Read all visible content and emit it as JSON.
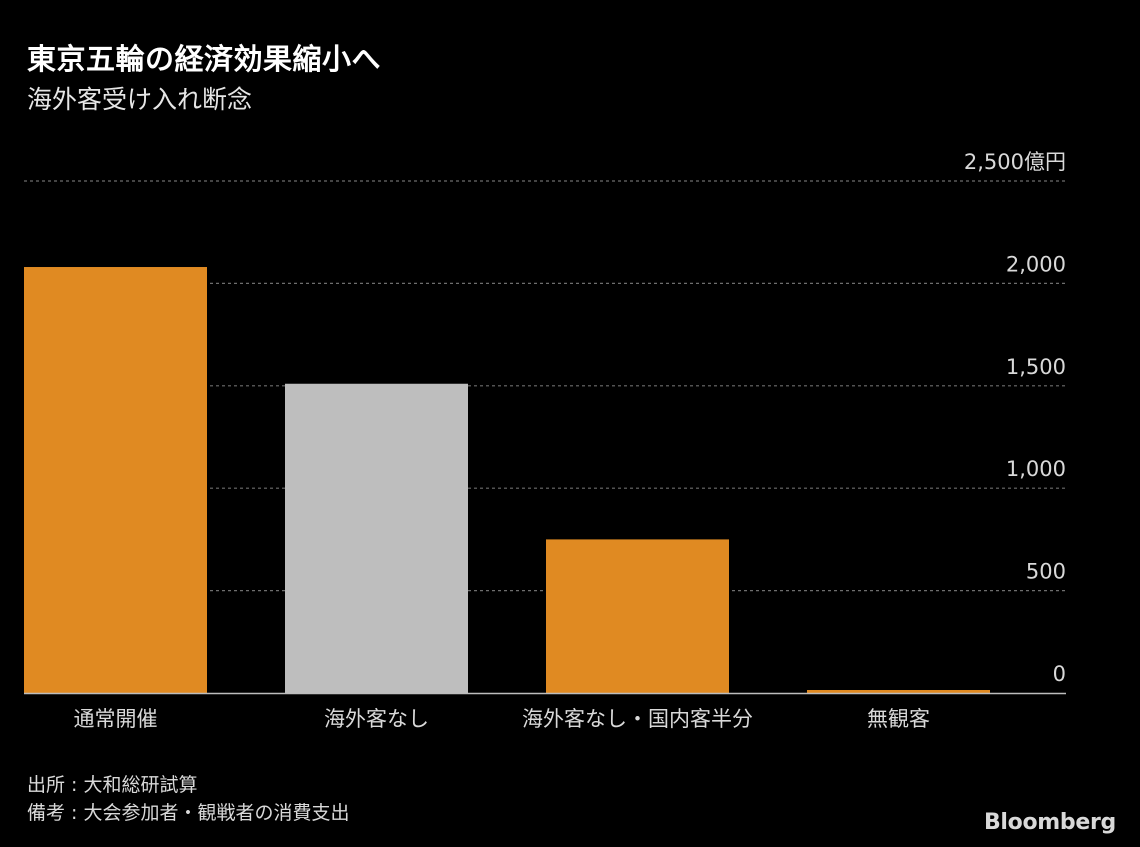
{
  "header": {
    "title": "東京五輪の経済効果縮小へ",
    "subtitle": "海外客受け入れ断念"
  },
  "chart_data": {
    "type": "bar",
    "categories": [
      "通常開催",
      "海外客なし",
      "海外客なし・国内客半分",
      "無観客"
    ],
    "values": [
      2080,
      1510,
      750,
      10
    ],
    "bar_colors": [
      "#e08a22",
      "#bebebe",
      "#e08a22",
      "#e08a22"
    ],
    "ylim": [
      0,
      2500
    ],
    "yticks": [
      0,
      500,
      1000,
      1500,
      2000,
      2500
    ],
    "ytick_labels": [
      "0",
      "500",
      "1,000",
      "1,500",
      "2,000",
      "2,500億円"
    ],
    "y_axis_position": "right",
    "grid": true,
    "title": "東京五輪の経済効果縮小へ",
    "subtitle": "海外客受け入れ断念"
  },
  "footer": {
    "source": "出所 : 大和総研試算",
    "note": "備考 : 大会参加者・観戦者の消費支出",
    "brand": "Bloomberg"
  },
  "colors": {
    "background": "#000000",
    "accent": "#e08a22",
    "highlight": "#bebebe",
    "grid": "#6e6e6e",
    "text": "#d9d9d9"
  }
}
